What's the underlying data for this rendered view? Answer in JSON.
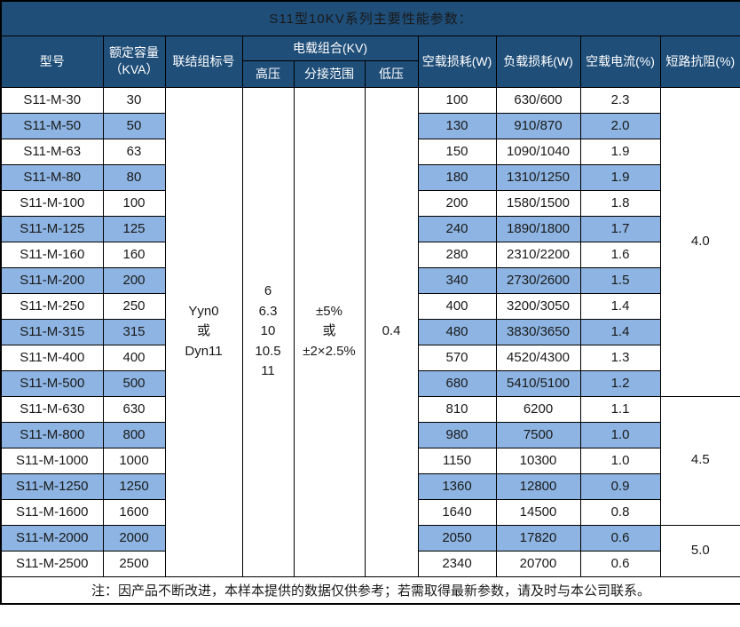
{
  "title": "S11型10KV系列主要性能参数：",
  "colors": {
    "header_bg": "#1F4E79",
    "header_text": "#FFFFFF",
    "row_alt_bg": "#8DB4E2",
    "row_bg": "#FFFFFF",
    "grid_border": "#000000"
  },
  "header": {
    "model": "型号",
    "capacity": "额定容量\n（KVA）",
    "connection": "联结组标号",
    "voltage_combo": "电载组合(KV)",
    "high_voltage": "高压",
    "tap_range": "分接范围",
    "low_voltage": "低压",
    "no_load_loss": "空载损耗(W)",
    "load_loss": "负载损耗(W)",
    "no_load_current": "空载电流(%)",
    "impedance": "短路抗阻(%)"
  },
  "merged": {
    "connection": "Yyn0\n或\nDyn11",
    "high_voltage": "6\n6.3\n10\n10.5\n11",
    "tap_range": "±5%\n或\n±2×2.5%",
    "low_voltage": "0.4"
  },
  "rows": [
    {
      "model": "S11-M-30",
      "kva": "30",
      "no_load_loss": "100",
      "load_loss": "630/600",
      "no_load_current": "2.3"
    },
    {
      "model": "S11-M-50",
      "kva": "50",
      "no_load_loss": "130",
      "load_loss": "910/870",
      "no_load_current": "2.0"
    },
    {
      "model": "S11-M-63",
      "kva": "63",
      "no_load_loss": "150",
      "load_loss": "1090/1040",
      "no_load_current": "1.9"
    },
    {
      "model": "S11-M-80",
      "kva": "80",
      "no_load_loss": "180",
      "load_loss": "1310/1250",
      "no_load_current": "1.9"
    },
    {
      "model": "S11-M-100",
      "kva": "100",
      "no_load_loss": "200",
      "load_loss": "1580/1500",
      "no_load_current": "1.8"
    },
    {
      "model": "S11-M-125",
      "kva": "125",
      "no_load_loss": "240",
      "load_loss": "1890/1800",
      "no_load_current": "1.7"
    },
    {
      "model": "S11-M-160",
      "kva": "160",
      "no_load_loss": "280",
      "load_loss": "2310/2200",
      "no_load_current": "1.6"
    },
    {
      "model": "S11-M-200",
      "kva": "200",
      "no_load_loss": "340",
      "load_loss": "2730/2600",
      "no_load_current": "1.5"
    },
    {
      "model": "S11-M-250",
      "kva": "250",
      "no_load_loss": "400",
      "load_loss": "3200/3050",
      "no_load_current": "1.4"
    },
    {
      "model": "S11-M-315",
      "kva": "315",
      "no_load_loss": "480",
      "load_loss": "3830/3650",
      "no_load_current": "1.4"
    },
    {
      "model": "S11-M-400",
      "kva": "400",
      "no_load_loss": "570",
      "load_loss": "4520/4300",
      "no_load_current": "1.3"
    },
    {
      "model": "S11-M-500",
      "kva": "500",
      "no_load_loss": "680",
      "load_loss": "5410/5100",
      "no_load_current": "1.2"
    },
    {
      "model": "S11-M-630",
      "kva": "630",
      "no_load_loss": "810",
      "load_loss": "6200",
      "no_load_current": "1.1"
    },
    {
      "model": "S11-M-800",
      "kva": "800",
      "no_load_loss": "980",
      "load_loss": "7500",
      "no_load_current": "1.0"
    },
    {
      "model": "S11-M-1000",
      "kva": "1000",
      "no_load_loss": "1150",
      "load_loss": "10300",
      "no_load_current": "1.0"
    },
    {
      "model": "S11-M-1250",
      "kva": "1250",
      "no_load_loss": "1360",
      "load_loss": "12800",
      "no_load_current": "0.9"
    },
    {
      "model": "S11-M-1600",
      "kva": "1600",
      "no_load_loss": "1640",
      "load_loss": "14500",
      "no_load_current": "0.8"
    },
    {
      "model": "S11-M-2000",
      "kva": "2000",
      "no_load_loss": "2050",
      "load_loss": "17820",
      "no_load_current": "0.6"
    },
    {
      "model": "S11-M-2500",
      "kva": "2500",
      "no_load_loss": "2340",
      "load_loss": "20700",
      "no_load_current": "0.6"
    }
  ],
  "impedance_groups": [
    {
      "value": "4.0",
      "span": 12
    },
    {
      "value": "4.5",
      "span": 5
    },
    {
      "value": "5.0",
      "span": 2
    }
  ],
  "note": "注：因产品不断改进，本样本提供的数据仅供参考；若需取得最新参数，请及时与本公司联系。"
}
